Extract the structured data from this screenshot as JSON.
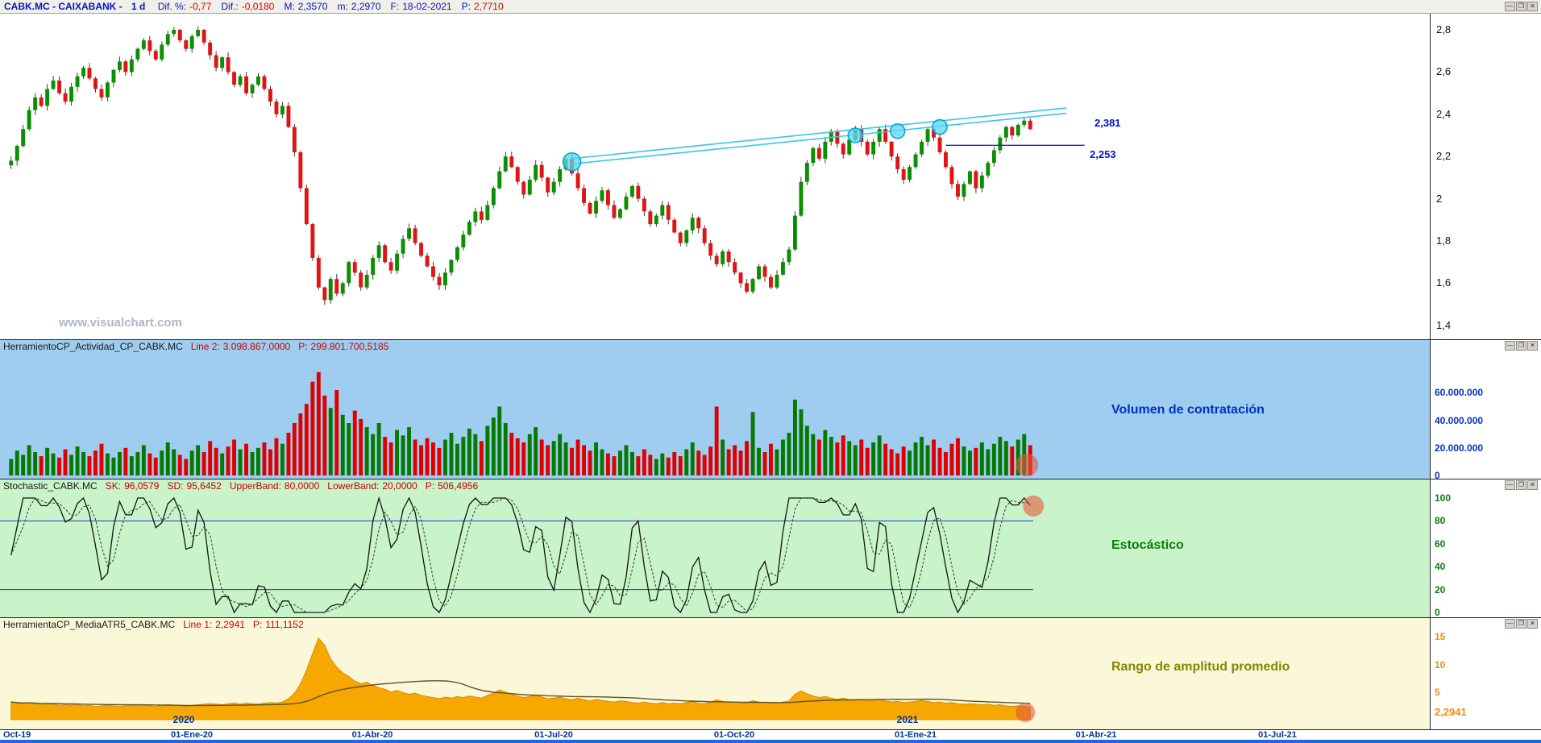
{
  "app": {
    "watermark": "www.visualchart.com",
    "window_controls": [
      {
        "name": "minimize",
        "glyph": "—"
      },
      {
        "name": "maximize",
        "glyph": "❐"
      },
      {
        "name": "close",
        "glyph": "✕"
      }
    ]
  },
  "header": {
    "symbol": "CABK.MC - CAIXABANK -",
    "timeframe": "1 d",
    "fields": [
      {
        "label": "Dif. %:",
        "value": "-0,77",
        "color": "#e00000"
      },
      {
        "label": "Dif.:",
        "value": "-0,0180",
        "color": "#e00000"
      },
      {
        "label": "M:",
        "value": "2,3570",
        "color": "#0016c8"
      },
      {
        "label": "m:",
        "value": "2,2970",
        "color": "#0016c8"
      },
      {
        "label": "F:",
        "value": "18-02-2021",
        "color": "#0016c8"
      },
      {
        "label": "P:",
        "value": "2,7710",
        "color": "#e00000"
      }
    ]
  },
  "panels": {
    "price": {
      "y_ticks": [
        {
          "label": "2,8",
          "value": 2.8
        },
        {
          "label": "2,6",
          "value": 2.6
        },
        {
          "label": "2,4",
          "value": 2.4
        },
        {
          "label": "2,2",
          "value": 2.2
        },
        {
          "label": "2",
          "value": 2.0
        },
        {
          "label": "1,8",
          "value": 1.8
        },
        {
          "label": "1,6",
          "value": 1.6
        },
        {
          "label": "1,4",
          "value": 1.4
        }
      ]
    },
    "volume": {
      "header": {
        "name": "HerramientoCP_Actividad_CP_CABK.MC",
        "fields": [
          {
            "label": "Line 2:",
            "value": "3.098.867,0000"
          },
          {
            "label": "P:",
            "value": "299.801.700,5185"
          }
        ]
      },
      "title": "Volumen de contratación",
      "y_ticks": [
        {
          "label": "60.000.000",
          "value": 60
        },
        {
          "label": "40.000.000",
          "value": 40
        },
        {
          "label": "20.000.000",
          "value": 20
        },
        {
          "label": "0",
          "value": 0
        }
      ]
    },
    "stochastic": {
      "header": {
        "name": "Stochastic_CABK.MC",
        "fields": [
          {
            "label": "SK:",
            "value": "96,0579"
          },
          {
            "label": "SD:",
            "value": "95,6452"
          },
          {
            "label": "UpperBand:",
            "value": "80,0000"
          },
          {
            "label": "LowerBand:",
            "value": "20,0000"
          },
          {
            "label": "P:",
            "value": "506,4956"
          }
        ]
      },
      "title": "Estocástico",
      "y_ticks": [
        {
          "label": "100",
          "value": 100
        },
        {
          "label": "80",
          "value": 80
        },
        {
          "label": "60",
          "value": 60
        },
        {
          "label": "40",
          "value": 40
        },
        {
          "label": "20",
          "value": 20
        },
        {
          "label": "0",
          "value": 0
        }
      ]
    },
    "atr": {
      "header": {
        "name": "HerramientaCP_MediaATR5_CABK.MC",
        "fields": [
          {
            "label": "Line 1:",
            "value": "2,2941"
          },
          {
            "label": "P:",
            "value": "111,1152"
          }
        ]
      },
      "title": "Rango de amplitud promedio",
      "y_ticks": [
        {
          "label": "15",
          "value": 15
        },
        {
          "label": "10",
          "value": 10
        },
        {
          "label": "5",
          "value": 5
        }
      ],
      "current_value": "2,2941"
    }
  },
  "timeline": {
    "dates": [
      "Oct-19",
      "01-Ene-20",
      "01-Abr-20",
      "01-Jul-20",
      "01-Oct-20",
      "01-Ene-21",
      "01-Abr-21",
      "01-Jul-21"
    ],
    "years": [
      "2020",
      "2021"
    ]
  },
  "chart_data": [
    {
      "type": "candlestick",
      "name": "CABK.MC daily price",
      "x_start": "Oct-2019",
      "x_end": "18-02-2021",
      "ylim": [
        1.35,
        2.88
      ],
      "closes": [
        2.18,
        2.25,
        2.33,
        2.42,
        2.48,
        2.44,
        2.52,
        2.56,
        2.5,
        2.46,
        2.53,
        2.58,
        2.62,
        2.57,
        2.52,
        2.48,
        2.55,
        2.61,
        2.65,
        2.6,
        2.66,
        2.71,
        2.75,
        2.7,
        2.66,
        2.73,
        2.78,
        2.8,
        2.75,
        2.71,
        2.77,
        2.8,
        2.74,
        2.68,
        2.62,
        2.67,
        2.6,
        2.54,
        2.58,
        2.5,
        2.54,
        2.58,
        2.52,
        2.46,
        2.4,
        2.44,
        2.34,
        2.22,
        2.05,
        1.88,
        1.72,
        1.58,
        1.52,
        1.62,
        1.55,
        1.6,
        1.7,
        1.65,
        1.58,
        1.64,
        1.72,
        1.78,
        1.7,
        1.66,
        1.74,
        1.81,
        1.86,
        1.79,
        1.73,
        1.68,
        1.63,
        1.59,
        1.65,
        1.71,
        1.77,
        1.83,
        1.89,
        1.94,
        1.9,
        1.97,
        2.05,
        2.13,
        2.2,
        2.15,
        2.08,
        2.02,
        2.09,
        2.16,
        2.1,
        2.03,
        2.08,
        2.14,
        2.19,
        2.12,
        2.05,
        1.98,
        1.93,
        1.99,
        2.04,
        1.97,
        1.91,
        1.95,
        2.01,
        2.06,
        2.0,
        1.94,
        1.88,
        1.92,
        1.97,
        1.9,
        1.84,
        1.79,
        1.85,
        1.91,
        1.86,
        1.79,
        1.73,
        1.69,
        1.75,
        1.7,
        1.65,
        1.6,
        1.56,
        1.62,
        1.68,
        1.63,
        1.58,
        1.64,
        1.7,
        1.76,
        1.92,
        2.08,
        2.17,
        2.24,
        2.19,
        2.27,
        2.32,
        2.26,
        2.21,
        2.28,
        2.33,
        2.27,
        2.21,
        2.27,
        2.33,
        2.27,
        2.2,
        2.14,
        2.09,
        2.15,
        2.21,
        2.27,
        2.33,
        2.29,
        2.22,
        2.15,
        2.07,
        2.01,
        2.07,
        2.13,
        2.05,
        2.11,
        2.17,
        2.23,
        2.29,
        2.34,
        2.3,
        2.35,
        2.37,
        2.33
      ],
      "annotations": {
        "trendlines": [
          {
            "i1": 93,
            "p1": 2.19,
            "i2": 175,
            "p2": 2.43,
            "color": "#38c6e8"
          },
          {
            "i1": 93,
            "p1": 2.165,
            "i2": 175,
            "p2": 2.405,
            "color": "#38c6e8"
          }
        ],
        "trend_label": "2,381",
        "support_line": {
          "i1": 155,
          "i2": 178,
          "price": 2.253,
          "color": "#2222cc",
          "label": "2,253"
        },
        "touch_markers": [
          {
            "i": 93,
            "p": 2.175,
            "r": 11
          },
          {
            "i": 140,
            "p": 2.3,
            "r": 9
          },
          {
            "i": 147,
            "p": 2.32,
            "r": 9
          },
          {
            "i": 154,
            "p": 2.34,
            "r": 9
          }
        ]
      }
    },
    {
      "type": "bar",
      "name": "Volumen de contratación",
      "unit": "millions of shares",
      "ylim": [
        0,
        85
      ],
      "values": [
        12,
        18,
        15,
        22,
        17,
        14,
        20,
        16,
        13,
        19,
        15,
        21,
        17,
        14,
        18,
        23,
        16,
        13,
        17,
        20,
        14,
        17,
        22,
        16,
        13,
        18,
        24,
        19,
        15,
        12,
        18,
        22,
        17,
        25,
        20,
        16,
        21,
        26,
        19,
        23,
        17,
        20,
        24,
        19,
        27,
        23,
        31,
        38,
        45,
        52,
        68,
        75,
        58,
        49,
        62,
        44,
        38,
        47,
        41,
        35,
        30,
        38,
        28,
        24,
        33,
        29,
        35,
        26,
        22,
        27,
        24,
        20,
        26,
        31,
        23,
        28,
        34,
        30,
        25,
        36,
        42,
        50,
        38,
        31,
        27,
        24,
        30,
        35,
        26,
        22,
        25,
        30,
        24,
        20,
        26,
        22,
        18,
        24,
        19,
        16,
        14,
        18,
        22,
        17,
        14,
        19,
        15,
        12,
        16,
        13,
        17,
        14,
        19,
        24,
        18,
        15,
        21,
        50,
        26,
        19,
        22,
        18,
        25,
        46,
        20,
        17,
        23,
        19,
        26,
        31,
        55,
        48,
        36,
        30,
        26,
        33,
        28,
        24,
        29,
        25,
        22,
        26,
        20,
        24,
        29,
        23,
        19,
        16,
        21,
        18,
        24,
        28,
        22,
        26,
        20,
        17,
        23,
        27,
        21,
        18,
        20,
        24,
        19,
        23,
        28,
        25,
        21,
        26,
        30,
        22
      ]
    },
    {
      "type": "line",
      "name": "Estocástico",
      "ylim": [
        0,
        100
      ],
      "upper_band": 80,
      "lower_band": 20,
      "derived_from": "closes",
      "sk_last": 96.0579,
      "sd_last": 95.6452
    },
    {
      "type": "area",
      "name": "Rango de amplitud promedio",
      "ylim": [
        0,
        16
      ],
      "last": 2.2941,
      "values": [
        3.2,
        3.0,
        2.9,
        3.1,
        2.8,
        2.7,
        2.9,
        2.8,
        2.6,
        2.7,
        2.6,
        2.7,
        2.5,
        2.6,
        2.4,
        2.5,
        2.6,
        2.5,
        2.4,
        2.5,
        2.5,
        2.6,
        2.7,
        2.5,
        2.4,
        2.6,
        2.7,
        2.6,
        2.5,
        2.4,
        2.6,
        2.7,
        2.8,
        2.9,
        2.8,
        2.7,
        2.9,
        3.0,
        2.8,
        3.0,
        2.9,
        2.8,
        3.0,
        3.1,
        3.0,
        3.2,
        3.8,
        4.8,
        6.5,
        9.0,
        12.0,
        14.8,
        13.5,
        11.0,
        9.5,
        8.5,
        7.8,
        7.0,
        6.5,
        6.8,
        6.2,
        5.8,
        5.5,
        5.0,
        5.3,
        4.9,
        4.6,
        4.8,
        4.4,
        4.2,
        4.0,
        3.8,
        4.1,
        3.9,
        4.2,
        4.0,
        4.3,
        4.1,
        3.9,
        4.4,
        4.8,
        5.4,
        5.0,
        4.6,
        4.3,
        4.0,
        4.2,
        4.5,
        4.1,
        3.8,
        3.9,
        4.1,
        3.8,
        3.6,
        3.9,
        3.6,
        3.4,
        3.7,
        3.5,
        3.3,
        3.2,
        3.4,
        3.3,
        3.1,
        3.0,
        3.2,
        3.0,
        2.9,
        3.1,
        2.9,
        3.0,
        2.9,
        3.1,
        3.3,
        3.0,
        2.9,
        3.1,
        3.6,
        3.3,
        3.1,
        3.2,
        3.0,
        3.1,
        3.4,
        3.2,
        3.0,
        3.1,
        3.0,
        3.2,
        3.4,
        4.6,
        5.2,
        4.7,
        4.3,
        4.0,
        4.2,
        3.9,
        3.7,
        3.9,
        3.6,
        3.5,
        3.6,
        3.4,
        3.5,
        3.7,
        3.4,
        3.2,
        3.3,
        3.1,
        3.2,
        3.3,
        3.5,
        3.3,
        3.1,
        3.2,
        3.0,
        3.1,
        2.9,
        2.8,
        2.9,
        2.8,
        2.7,
        2.8,
        2.6,
        2.7,
        2.5,
        2.4,
        2.5,
        2.4,
        2.29
      ]
    }
  ]
}
